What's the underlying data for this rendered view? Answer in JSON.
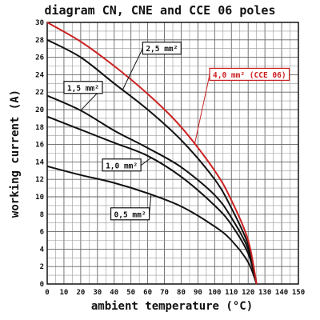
{
  "chart_data": {
    "type": "line",
    "title": "diagram CN, CNE and CCE 06 poles",
    "xlabel": "ambient temperature (°C)",
    "ylabel": "working current (A)",
    "xlim": [
      0,
      150
    ],
    "ylim": [
      0,
      30
    ],
    "x_ticks": [
      "0",
      "10",
      "20",
      "30",
      "40",
      "50",
      "60",
      "70",
      "80",
      "90",
      "100",
      "110",
      "120",
      "130",
      "140",
      "150"
    ],
    "y_ticks": [
      "0",
      "2",
      "4",
      "6",
      "8",
      "10",
      "12",
      "14",
      "16",
      "18",
      "20",
      "22",
      "24",
      "26",
      "28",
      "30"
    ],
    "grid": true,
    "legend": "none",
    "series": [
      {
        "name": "0,5 mm²",
        "color": "#111111",
        "x": [
          0,
          20,
          40,
          60,
          80,
          100,
          110,
          120,
          125
        ],
        "y": [
          13.5,
          12.5,
          11.6,
          10.4,
          8.9,
          6.6,
          5.0,
          2.5,
          0.0
        ]
      },
      {
        "name": "1,0 mm²",
        "color": "#111111",
        "x": [
          0,
          20,
          40,
          60,
          80,
          100,
          110,
          120,
          125
        ],
        "y": [
          19.2,
          17.7,
          16.2,
          14.7,
          12.3,
          9.0,
          6.8,
          3.5,
          0.0
        ]
      },
      {
        "name": "1,5 mm²",
        "color": "#111111",
        "x": [
          0,
          20,
          40,
          60,
          80,
          100,
          110,
          120,
          125
        ],
        "y": [
          21.6,
          19.9,
          17.6,
          15.6,
          13.4,
          10.2,
          7.6,
          4.0,
          0.0
        ]
      },
      {
        "name": "2,5 mm²",
        "color": "#111111",
        "x": [
          0,
          20,
          40,
          60,
          80,
          100,
          110,
          120,
          125
        ],
        "y": [
          28.0,
          26.0,
          23.0,
          20.0,
          16.5,
          12.0,
          8.7,
          4.5,
          0.0
        ]
      },
      {
        "name": "4,0 mm² (CCE 06)",
        "color": "#cc2222",
        "x": [
          0,
          20,
          40,
          60,
          80,
          100,
          110,
          120,
          125
        ],
        "y": [
          30.0,
          27.8,
          25.0,
          21.8,
          18.0,
          13.0,
          9.6,
          5.0,
          0.0
        ]
      }
    ]
  }
}
